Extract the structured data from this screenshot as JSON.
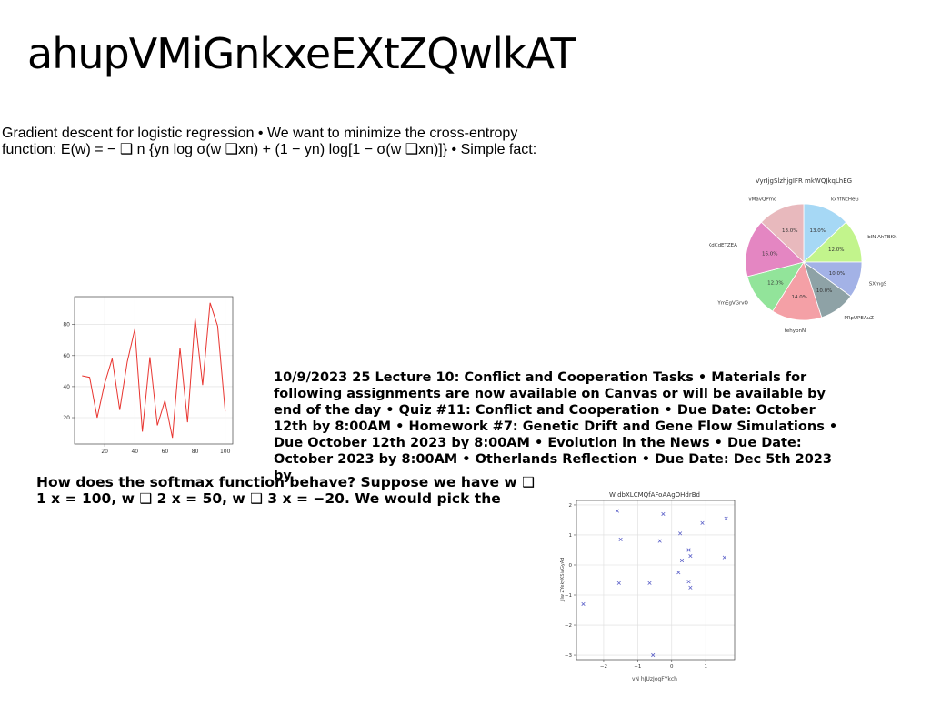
{
  "slide": {
    "title": "ahupVMiGnkxeEXtZQwlkAT",
    "para1": "Gradient descent for logistic regression • We want to minimize the cross-entropy function: E(w) = − ❑ n {yn log σ(w ❑xn) + (1 − yn) log[1 − σ(w ❑xn)]} • Simple fact:",
    "para2": "10/9/2023 25 Lecture 10: Conflict and Cooperation Tasks • Materials for following assignments are now available on Canvas or will be available by end of the day • Quiz #11: Conflict and Cooperation • Due Date: October 12th by 8:00AM • Homework #7: Genetic Drift and Gene Flow Simulations • Due October 12th 2023 by 8:00AM • Evolution in the News • Due Date: October 2023 by 8:00AM • Otherlands Reflection • Due Date: Dec 5th 2023 by",
    "para3": "How does the softmax function behave? Suppose we have w ❑ 1 x = 100, w ❑ 2 x = 50, w ❑ 3 x = −20. We would pick the"
  },
  "chart_data": [
    {
      "type": "pie",
      "title": "VyrIjgSlzhjgIFR mkWQJkqLhEG",
      "labels": [
        "kxYfNcHeG",
        "bIN AhTBKh",
        "SXmgS",
        "PRpUPEAuZ",
        "fehypnN",
        "YmEgVGrvO",
        "KdCdETZEA",
        "vMavQPmc"
      ],
      "values": [
        13.0,
        12.0,
        10.0,
        10.0,
        14.0,
        12.0,
        16.0,
        13.0
      ],
      "pct_labels": [
        "13.0%",
        "12.0%",
        "10.0%",
        "10.0%",
        "14.0%",
        "12.0%",
        "16.0%",
        "13.0%"
      ],
      "colors": [
        "#a6d8f5",
        "#c2f48c",
        "#a3b2e6",
        "#8ea2a6",
        "#f4a0a6",
        "#92e49a",
        "#e486c2",
        "#e8b9bd"
      ]
    },
    {
      "type": "line",
      "title": "",
      "color": "#e8342f",
      "x": [
        5,
        10,
        15,
        20,
        25,
        30,
        35,
        40,
        45,
        50,
        55,
        60,
        65,
        70,
        75,
        80,
        85,
        90,
        95,
        100
      ],
      "y": [
        47,
        46,
        20,
        42,
        58,
        25,
        56,
        77,
        11,
        59,
        15,
        31,
        7,
        65,
        17,
        84,
        41,
        94,
        79,
        24
      ],
      "xlim": [
        0,
        105
      ],
      "ylim": [
        3,
        98
      ],
      "xticks": [
        20,
        40,
        60,
        80,
        100
      ],
      "yticks": [
        20,
        40,
        60,
        80
      ],
      "grid": true
    },
    {
      "type": "scatter",
      "title": "W dbXLCMQfAFoAAgOHdrBd",
      "xlabel": "vN hJUzJogFYkch",
      "ylabel": "jjIw ZYekyKSiaGyAd",
      "marker": "x",
      "color": "#5a5fc8",
      "x": [
        -2.6,
        -1.6,
        -1.55,
        -1.5,
        -0.65,
        -0.55,
        -0.35,
        -0.25,
        0.2,
        0.25,
        0.3,
        0.5,
        0.55,
        0.5,
        0.55,
        0.9,
        1.55,
        1.6
      ],
      "y": [
        -1.3,
        1.8,
        -0.6,
        0.85,
        -0.6,
        -3.0,
        0.8,
        1.7,
        -0.25,
        1.05,
        0.15,
        0.5,
        0.3,
        -0.55,
        -0.75,
        1.4,
        0.25,
        1.55
      ],
      "xlim": [
        -2.8,
        1.85
      ],
      "ylim": [
        -3.15,
        2.15
      ],
      "xticks": [
        -2,
        -1,
        0,
        1
      ],
      "yticks": [
        -3,
        -2,
        -1,
        0,
        1,
        2
      ],
      "grid": true
    }
  ]
}
